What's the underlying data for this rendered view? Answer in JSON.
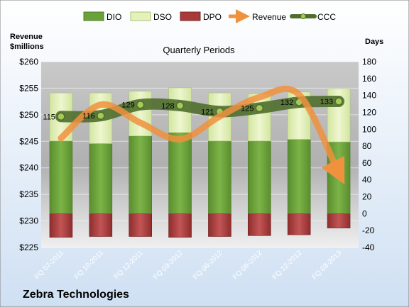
{
  "chart_data": {
    "type": "bar",
    "title": "Quarterly Periods",
    "company": "Zebra Technologies",
    "left_axis_label_line1": "Revenue",
    "left_axis_label_line2": "$millions",
    "right_axis_label": "Days",
    "categories": [
      "FQ 07-2011",
      "FQ 10-2011",
      "FQ 12-2011",
      "FQ 03-2012",
      "FQ 06-2012",
      "FQ 09-2012",
      "FQ 12-2012",
      "FQ 03-2013"
    ],
    "left_axis": {
      "min": 225,
      "max": 260,
      "step": 5,
      "prefix": "$"
    },
    "right_axis": {
      "min": -40,
      "max": 180,
      "step": 20
    },
    "series": [
      {
        "name": "DIO",
        "axis": "right",
        "kind": "stacked-bar",
        "values": [
          86,
          83,
          92,
          96,
          86,
          86,
          88,
          85
        ],
        "color": "#6aa13b"
      },
      {
        "name": "DSO",
        "axis": "right",
        "kind": "stacked-bar",
        "values": [
          57,
          60,
          53,
          53,
          57,
          56,
          56,
          63
        ],
        "color": "#e4f1b8"
      },
      {
        "name": "DPO",
        "axis": "right",
        "kind": "negative-bar",
        "values": [
          -28,
          -27,
          -27,
          -28,
          -27,
          -26,
          -25,
          -17
        ],
        "color": "#a93a3a"
      },
      {
        "name": "Revenue",
        "axis": "left",
        "kind": "line",
        "values": [
          245.6,
          251.9,
          248.5,
          245.4,
          249.7,
          253.3,
          253.8,
          239.0
        ],
        "color": "#f0913d"
      },
      {
        "name": "CCC",
        "axis": "right",
        "kind": "line",
        "values": [
          115,
          116,
          129,
          128,
          121,
          125,
          132,
          133
        ],
        "color": "#4f6e2d"
      }
    ],
    "ccc_labels": [
      "115",
      "116",
      "129",
      "128",
      "121",
      "125",
      "132",
      "133"
    ],
    "grid": true,
    "legend_position": "top"
  }
}
